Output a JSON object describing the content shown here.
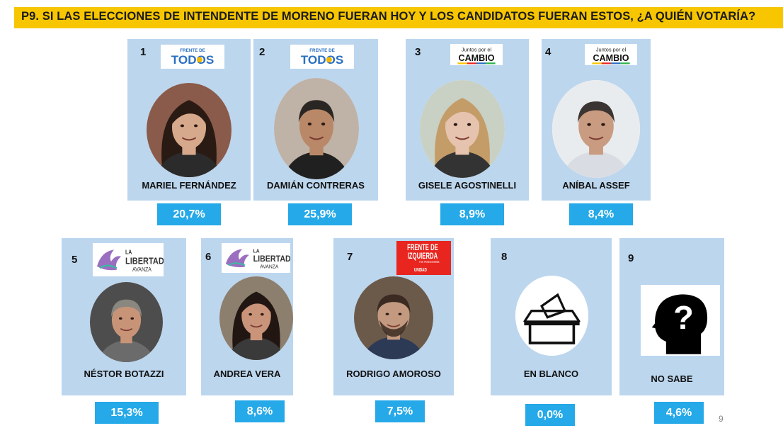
{
  "header": {
    "title": "P9. SI LAS ELECCIONES DE INTENDENTE DE MORENO FUERAN HOY Y LOS CANDIDATOS FUERAN ESTOS, ¿A QUIÉN VOTARÍA?"
  },
  "logos": {
    "fdt_small": "FRENTE DE",
    "fdt_big": "TODOS",
    "jxc_small": "Juntos por el",
    "jxc_big": "CAMBIO",
    "lla_line1": "LA",
    "lla_line2": "LIBERTAD",
    "lla_line3": "AVANZA",
    "fit_line1": "FRENTE DE",
    "fit_line2": "IZQUIERDA",
    "fit_line3": "Y DE TRABAJADORES",
    "fit_line4": "UNIDAD"
  },
  "colors": {
    "header_bg": "#f7c600",
    "card_bg": "#bcd6ee",
    "pct_bg": "#25a9e8",
    "fdt_blue": "#2a6fc2",
    "fdt_sun": "#f6b800",
    "fit_red": "#e8261f"
  },
  "chart_data": {
    "type": "table",
    "title": "P9. SI LAS ELECCIONES DE INTENDENTE DE MORENO FUERAN HOY Y LOS CANDIDATOS FUERAN ESTOS, ¿A QUIÉN VOTARÍA?",
    "options": [
      {
        "number": "1",
        "name": "MARIEL FERNÁNDEZ",
        "party_logo": "frente-de-todos",
        "value": 20.7,
        "label": "20,7%"
      },
      {
        "number": "2",
        "name": "DAMIÁN CONTRERAS",
        "party_logo": "frente-de-todos",
        "value": 25.9,
        "label": "25,9%"
      },
      {
        "number": "3",
        "name": "GISELE AGOSTINELLI",
        "party_logo": "juntos-por-el-cambio",
        "value": 8.9,
        "label": "8,9%"
      },
      {
        "number": "4",
        "name": "ANÍBAL ASSEF",
        "party_logo": "juntos-por-el-cambio",
        "value": 8.4,
        "label": "8,4%"
      },
      {
        "number": "5",
        "name": "NÉSTOR BOTAZZI",
        "party_logo": "la-libertad-avanza",
        "value": 15.3,
        "label": "15,3%"
      },
      {
        "number": "6",
        "name": "ANDREA VERA",
        "party_logo": "la-libertad-avanza",
        "value": 8.6,
        "label": "8,6%"
      },
      {
        "number": "7",
        "name": "RODRIGO AMOROSO",
        "party_logo": "frente-de-izquierda",
        "value": 7.5,
        "label": "7,5%"
      },
      {
        "number": "8",
        "name": "EN BLANCO",
        "party_logo": "",
        "value": 0.0,
        "label": "0,0%"
      },
      {
        "number": "9",
        "name": "NO  SABE",
        "party_logo": "",
        "value": 4.6,
        "label": "4,6%"
      }
    ]
  },
  "footer": {
    "page_number": "9"
  }
}
